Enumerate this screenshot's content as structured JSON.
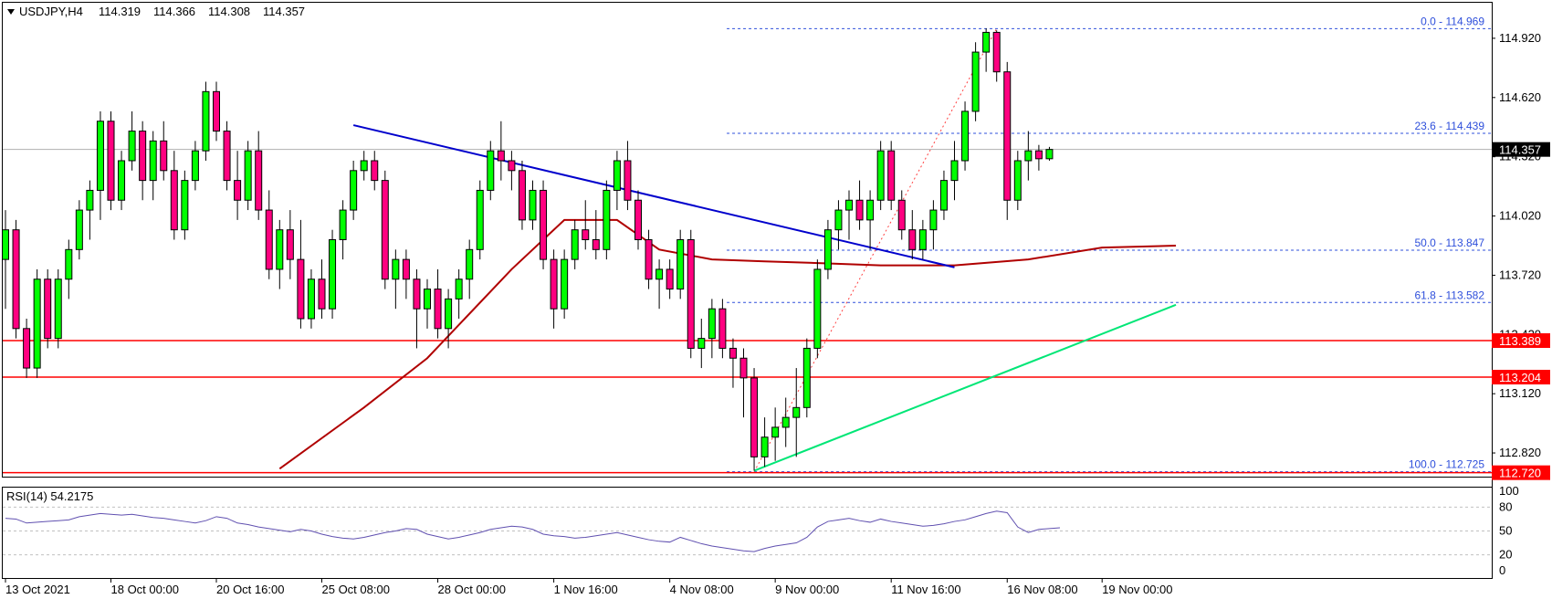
{
  "chart_data": {
    "type": "candlestick",
    "symbol_header": "USDJPY,H4",
    "ohlc_header": [
      "114.319",
      "114.366",
      "114.308",
      "114.357"
    ],
    "current_price": 114.357,
    "current_price_label": "114.357",
    "y_ticks": [
      "114.920",
      "114.620",
      "114.320",
      "114.020",
      "113.720",
      "113.420",
      "113.120",
      "112.820"
    ],
    "y_range": [
      112.7,
      115.1
    ],
    "x_ticks": [
      "13 Oct 2021",
      "18 Oct 00:00",
      "20 Oct 16:00",
      "25 Oct 08:00",
      "28 Oct 00:00",
      "1 Nov 16:00",
      "4 Nov 08:00",
      "9 Nov 00:00",
      "11 Nov 16:00",
      "16 Nov 08:00",
      "19 Nov 00:00"
    ],
    "candles": [
      [
        113.8,
        114.05,
        113.55,
        113.95
      ],
      [
        113.95,
        114.0,
        113.4,
        113.45
      ],
      [
        113.45,
        113.5,
        113.2,
        113.25
      ],
      [
        113.25,
        113.75,
        113.2,
        113.7
      ],
      [
        113.7,
        113.75,
        113.35,
        113.4
      ],
      [
        113.4,
        113.75,
        113.35,
        113.7
      ],
      [
        113.7,
        113.9,
        113.6,
        113.85
      ],
      [
        113.85,
        114.1,
        113.8,
        114.05
      ],
      [
        114.05,
        114.2,
        113.9,
        114.15
      ],
      [
        114.15,
        114.55,
        114.0,
        114.5
      ],
      [
        114.5,
        114.55,
        114.05,
        114.1
      ],
      [
        114.1,
        114.35,
        114.05,
        114.3
      ],
      [
        114.3,
        114.55,
        114.25,
        114.45
      ],
      [
        114.45,
        114.5,
        114.1,
        114.2
      ],
      [
        114.2,
        114.45,
        114.1,
        114.4
      ],
      [
        114.4,
        114.5,
        114.2,
        114.25
      ],
      [
        114.25,
        114.35,
        113.9,
        113.95
      ],
      [
        113.95,
        114.25,
        113.9,
        114.2
      ],
      [
        114.2,
        114.4,
        114.15,
        114.35
      ],
      [
        114.35,
        114.7,
        114.3,
        114.65
      ],
      [
        114.65,
        114.7,
        114.4,
        114.45
      ],
      [
        114.45,
        114.5,
        114.15,
        114.2
      ],
      [
        114.2,
        114.35,
        114.0,
        114.1
      ],
      [
        114.1,
        114.4,
        114.05,
        114.35
      ],
      [
        114.35,
        114.45,
        114.0,
        114.05
      ],
      [
        114.05,
        114.15,
        113.7,
        113.75
      ],
      [
        113.75,
        114.0,
        113.65,
        113.95
      ],
      [
        113.95,
        114.05,
        113.7,
        113.8
      ],
      [
        113.8,
        114.0,
        113.45,
        113.5
      ],
      [
        113.5,
        113.75,
        113.45,
        113.7
      ],
      [
        113.7,
        113.8,
        113.5,
        113.55
      ],
      [
        113.55,
        113.95,
        113.5,
        113.9
      ],
      [
        113.9,
        114.1,
        113.8,
        114.05
      ],
      [
        114.05,
        114.3,
        114.0,
        114.25
      ],
      [
        114.25,
        114.35,
        114.2,
        114.3
      ],
      [
        114.3,
        114.35,
        114.15,
        114.2
      ],
      [
        114.2,
        114.25,
        113.65,
        113.7
      ],
      [
        113.7,
        113.85,
        113.55,
        113.8
      ],
      [
        113.8,
        113.85,
        113.6,
        113.7
      ],
      [
        113.7,
        113.75,
        113.35,
        113.55
      ],
      [
        113.55,
        113.7,
        113.45,
        113.65
      ],
      [
        113.65,
        113.75,
        113.4,
        113.45
      ],
      [
        113.45,
        113.65,
        113.35,
        113.6
      ],
      [
        113.6,
        113.75,
        113.5,
        113.7
      ],
      [
        113.7,
        113.9,
        113.6,
        113.85
      ],
      [
        113.85,
        114.2,
        113.8,
        114.15
      ],
      [
        114.15,
        114.4,
        114.1,
        114.35
      ],
      [
        114.35,
        114.5,
        114.2,
        114.3
      ],
      [
        114.3,
        114.35,
        114.15,
        114.25
      ],
      [
        114.25,
        114.3,
        113.95,
        114.0
      ],
      [
        114.0,
        114.2,
        113.95,
        114.15
      ],
      [
        114.15,
        114.2,
        113.75,
        113.8
      ],
      [
        113.8,
        113.85,
        113.45,
        113.55
      ],
      [
        113.55,
        113.85,
        113.5,
        113.8
      ],
      [
        113.8,
        114.0,
        113.75,
        113.95
      ],
      [
        113.95,
        114.1,
        113.85,
        113.9
      ],
      [
        113.9,
        114.05,
        113.8,
        113.85
      ],
      [
        113.85,
        114.2,
        113.8,
        114.15
      ],
      [
        114.15,
        114.35,
        114.05,
        114.3
      ],
      [
        114.3,
        114.4,
        114.05,
        114.1
      ],
      [
        114.1,
        114.15,
        113.85,
        113.9
      ],
      [
        113.9,
        113.95,
        113.65,
        113.7
      ],
      [
        113.7,
        113.8,
        113.55,
        113.75
      ],
      [
        113.75,
        113.8,
        113.6,
        113.65
      ],
      [
        113.65,
        113.95,
        113.6,
        113.9
      ],
      [
        113.9,
        113.95,
        113.3,
        113.35
      ],
      [
        113.35,
        113.5,
        113.25,
        113.4
      ],
      [
        113.4,
        113.6,
        113.3,
        113.55
      ],
      [
        113.55,
        113.6,
        113.3,
        113.35
      ],
      [
        113.35,
        113.4,
        113.15,
        113.3
      ],
      [
        113.3,
        113.35,
        113.0,
        113.2
      ],
      [
        113.2,
        113.25,
        112.73,
        112.8
      ],
      [
        112.8,
        113.0,
        112.75,
        112.9
      ],
      [
        112.9,
        113.05,
        112.78,
        112.95
      ],
      [
        112.95,
        113.1,
        112.85,
        113.0
      ],
      [
        113.0,
        113.25,
        112.8,
        113.05
      ],
      [
        113.05,
        113.4,
        113.0,
        113.35
      ],
      [
        113.35,
        113.8,
        113.3,
        113.75
      ],
      [
        113.75,
        114.0,
        113.7,
        113.95
      ],
      [
        113.95,
        114.1,
        113.85,
        114.05
      ],
      [
        114.05,
        114.15,
        113.9,
        114.1
      ],
      [
        114.1,
        114.2,
        113.95,
        114.0
      ],
      [
        114.0,
        114.15,
        113.85,
        114.1
      ],
      [
        114.1,
        114.4,
        114.05,
        114.35
      ],
      [
        114.35,
        114.4,
        114.05,
        114.1
      ],
      [
        114.1,
        114.15,
        113.9,
        113.95
      ],
      [
        113.95,
        114.05,
        113.8,
        113.85
      ],
      [
        113.85,
        114.0,
        113.8,
        113.95
      ],
      [
        113.95,
        114.1,
        113.85,
        114.05
      ],
      [
        114.05,
        114.25,
        114.0,
        114.2
      ],
      [
        114.2,
        114.4,
        114.1,
        114.3
      ],
      [
        114.3,
        114.6,
        114.25,
        114.55
      ],
      [
        114.55,
        114.9,
        114.5,
        114.85
      ],
      [
        114.85,
        114.97,
        114.75,
        114.95
      ],
      [
        114.95,
        114.96,
        114.7,
        114.75
      ],
      [
        114.75,
        114.8,
        114.0,
        114.1
      ],
      [
        114.1,
        114.35,
        114.05,
        114.3
      ],
      [
        114.3,
        114.45,
        114.2,
        114.35
      ],
      [
        114.35,
        114.38,
        114.25,
        114.31
      ],
      [
        114.31,
        114.37,
        114.3,
        114.357
      ]
    ],
    "fibonacci": {
      "high": 114.969,
      "low": 112.725,
      "levels": [
        {
          "label": "0.0 - 114.969",
          "value": 114.969
        },
        {
          "label": "23.6 - 114.439",
          "value": 114.439
        },
        {
          "label": "50.0 - 113.847",
          "value": 113.847
        },
        {
          "label": "61.8 - 113.582",
          "value": 113.582
        },
        {
          "label": "100.0 - 112.725",
          "value": 112.725
        }
      ]
    },
    "horizontal_levels": [
      {
        "value": 113.389,
        "label": "113.389"
      },
      {
        "value": 113.204,
        "label": "113.204"
      },
      {
        "value": 112.72,
        "label": "112.720"
      }
    ],
    "bearish_trend_line": {
      "from": [
        33,
        114.48
      ],
      "to": [
        90,
        113.76
      ]
    },
    "bullish_support_line": {
      "from": [
        71,
        112.73
      ],
      "to": [
        111,
        113.57
      ]
    },
    "moving_average": [
      [
        26,
        112.74
      ],
      [
        34,
        113.05
      ],
      [
        40,
        113.3
      ],
      [
        48,
        113.75
      ],
      [
        53,
        114.0
      ],
      [
        58,
        114.0
      ],
      [
        62,
        113.85
      ],
      [
        67,
        113.8
      ],
      [
        72,
        113.79
      ],
      [
        78,
        113.78
      ],
      [
        83,
        113.77
      ],
      [
        90,
        113.77
      ],
      [
        97,
        113.8
      ],
      [
        104,
        113.86
      ],
      [
        111,
        113.87
      ]
    ],
    "rsi": {
      "label": "RSI(14) 54.2175",
      "y_ticks": [
        "100",
        "80",
        "50",
        "20",
        "0"
      ],
      "levels": [
        80,
        50,
        20
      ],
      "values": [
        66,
        65,
        60,
        61,
        62,
        63,
        64,
        68,
        70,
        72,
        71,
        70,
        71,
        69,
        67,
        66,
        64,
        62,
        60,
        63,
        68,
        66,
        60,
        58,
        55,
        53,
        51,
        49,
        52,
        50,
        46,
        43,
        41,
        40,
        42,
        45,
        48,
        50,
        53,
        52,
        46,
        43,
        40,
        42,
        45,
        48,
        52,
        54,
        56,
        55,
        52,
        46,
        44,
        43,
        41,
        42,
        44,
        46,
        48,
        45,
        42,
        39,
        37,
        36,
        42,
        38,
        34,
        31,
        29,
        27,
        25,
        24,
        28,
        31,
        33,
        35,
        42,
        55,
        62,
        64,
        66,
        63,
        61,
        65,
        62,
        60,
        58,
        56,
        57,
        59,
        62,
        64,
        68,
        72,
        75,
        73,
        55,
        48,
        52,
        53,
        54
      ]
    }
  },
  "colors": {
    "bull": "#00ff00",
    "bear": "#ff0080",
    "outline": "#000000",
    "trend": "#0000cc",
    "support": "#00e676",
    "ma": "#b00000",
    "fib": "#2e4fdb",
    "level": "#ff0000",
    "rsi": "#6050b0",
    "grid": "#c0c0c0"
  }
}
